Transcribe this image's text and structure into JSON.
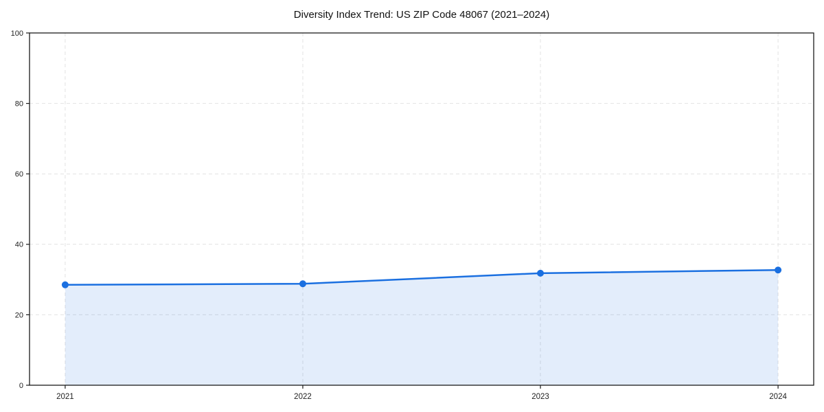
{
  "chart_data": {
    "type": "line",
    "title": "Diversity Index Trend: US ZIP Code 48067 (2021–2024)",
    "categories": [
      "2021",
      "2022",
      "2023",
      "2024"
    ],
    "series": [
      {
        "name": "Diversity Index",
        "values": [
          28.5,
          28.8,
          31.8,
          32.7
        ],
        "line_color": "#1a6fe0",
        "marker": "circle",
        "area_fill": true,
        "area_opacity": 0.12
      }
    ],
    "xlabel": "",
    "ylabel": "",
    "ylim": [
      0,
      100
    ],
    "yticks": [
      0,
      20,
      40,
      60,
      80,
      100
    ],
    "grid": true,
    "grid_style": "dashed",
    "legend": "none"
  },
  "style": {
    "background": "#ffffff",
    "grid_color": "#e2e2e2",
    "spine_color": "#1a1a1a",
    "tick_label_color": "#222222",
    "title_color": "#111111"
  }
}
